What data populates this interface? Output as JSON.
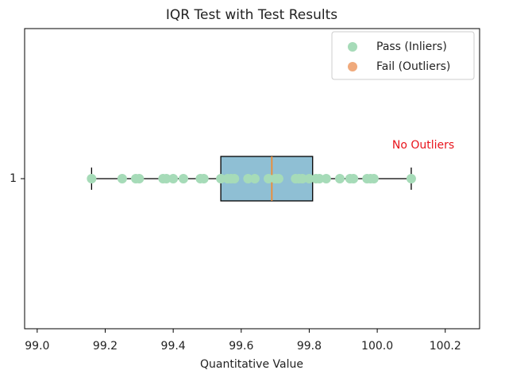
{
  "chart_data": {
    "type": "boxplot",
    "title": "IQR Test with Test Results",
    "x_label": "Quantitative Value",
    "categories": [
      "1"
    ],
    "box": {
      "whisker_low": 99.16,
      "q1": 99.54,
      "median": 99.69,
      "q3": 99.81,
      "whisker_high": 100.1,
      "color": "#8fbfd4",
      "median_color": "#f28b30"
    },
    "series": [
      {
        "name": "Pass (Inliers)",
        "color": "#a6dbb8",
        "values": [
          99.16,
          99.25,
          99.29,
          99.3,
          99.37,
          99.38,
          99.4,
          99.43,
          99.48,
          99.49,
          99.54,
          99.56,
          99.57,
          99.58,
          99.62,
          99.64,
          99.68,
          99.7,
          99.71,
          99.76,
          99.77,
          99.78,
          99.8,
          99.82,
          99.83,
          99.85,
          99.89,
          99.92,
          99.93,
          99.97,
          99.98,
          99.99,
          100.1
        ]
      },
      {
        "name": "Fail (Outliers)",
        "color": "#f0aa7c",
        "values": []
      }
    ],
    "annotation": "No Outliers",
    "annotation_color": "#e8141c",
    "xlim": [
      98.963,
      100.301
    ],
    "xticks": [
      {
        "value": 99,
        "label": "99.0"
      },
      99.2,
      99.4,
      99.6,
      99.8,
      {
        "value": 100,
        "label": "100.0"
      },
      100.2
    ],
    "ylim": [
      0.5,
      1.5
    ],
    "legend": "upper right"
  }
}
